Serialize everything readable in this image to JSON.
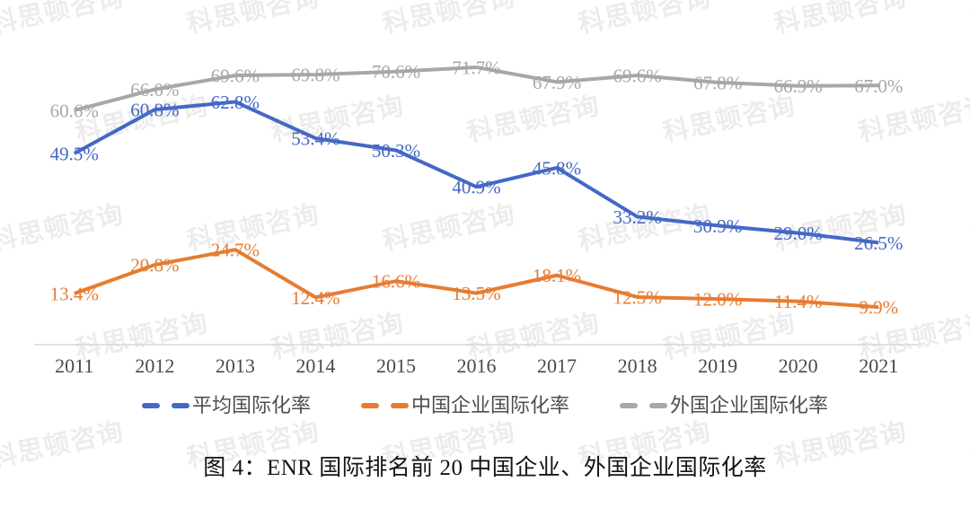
{
  "figure": {
    "caption": "图 4：ENR 国际排名前 20 中国企业、外国企业国际化率"
  },
  "watermark": {
    "text": "科思顿咨询"
  },
  "chart_data": {
    "type": "line",
    "title": "",
    "xlabel": "",
    "ylabel": "",
    "x": [
      "2011",
      "2012",
      "2013",
      "2014",
      "2015",
      "2016",
      "2017",
      "2018",
      "2019",
      "2020",
      "2021"
    ],
    "series": [
      {
        "name": "平均国际化率",
        "color": "#4468c5",
        "values": [
          49.5,
          60.8,
          62.8,
          53.4,
          50.3,
          40.9,
          45.8,
          33.2,
          30.9,
          29.0,
          26.5
        ]
      },
      {
        "name": "中国企业国际化率",
        "color": "#e67c32",
        "values": [
          13.4,
          20.8,
          24.7,
          12.4,
          16.6,
          13.5,
          18.1,
          12.5,
          12.0,
          11.4,
          9.9
        ]
      },
      {
        "name": "外国企业国际化率",
        "color": "#a7a7a7",
        "values": [
          60.6,
          66.0,
          69.6,
          69.8,
          70.6,
          71.7,
          67.9,
          69.6,
          67.8,
          66.9,
          67.0
        ]
      }
    ],
    "value_suffix": "%",
    "value_decimals": 1,
    "data_labels": true,
    "ylim": [
      0,
      80
    ],
    "grid": false,
    "y_axis_labels": false,
    "legend_position": "bottom",
    "axis_line_color": "#d7d7d7",
    "tick_color": "#4a4a4a"
  }
}
